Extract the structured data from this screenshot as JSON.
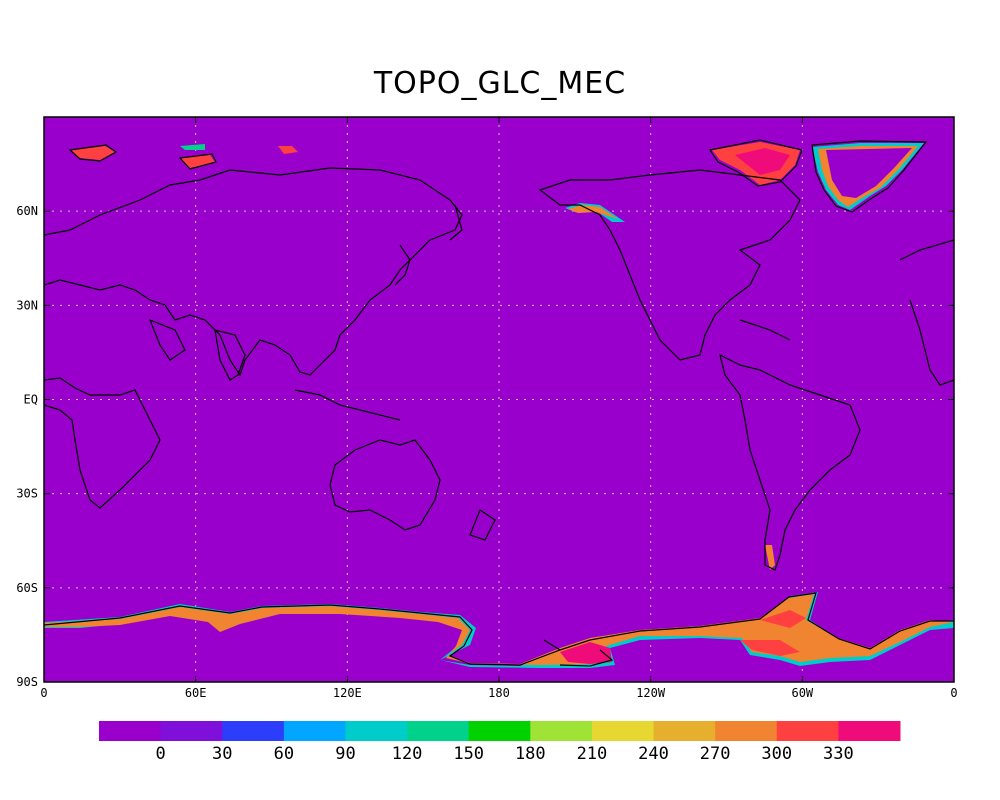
{
  "title": "TOPO_GLC_MEC",
  "map": {
    "projection": "cylindrical-equidistant",
    "center_longitude": 180,
    "background_color": "#9900cc",
    "grid": true,
    "lat_ticks": [
      "60N",
      "30N",
      "EQ",
      "30S",
      "60S",
      "90S"
    ],
    "lon_ticks": [
      "0",
      "60E",
      "120E",
      "180",
      "120W",
      "60W",
      "0"
    ]
  },
  "colorbar": {
    "colors": [
      "#9900cc",
      "#7f10d9",
      "#2d3dfc",
      "#00a6ff",
      "#00ccc9",
      "#00d28c",
      "#00d200",
      "#9fe336",
      "#e6d830",
      "#e6b02e",
      "#f08430",
      "#ff4040",
      "#f00b7a"
    ],
    "labels": [
      "0",
      "30",
      "60",
      "90",
      "120",
      "150",
      "180",
      "210",
      "240",
      "270",
      "300",
      "330"
    ]
  }
}
